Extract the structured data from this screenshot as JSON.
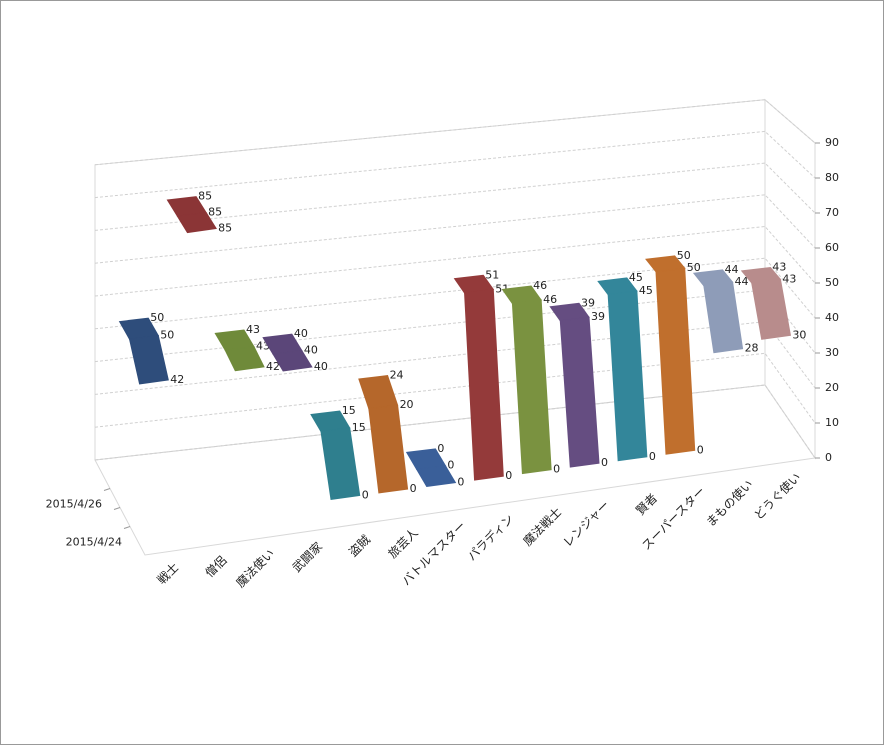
{
  "chart_data": {
    "type": "line",
    "view": "3d",
    "categories": [
      "2015/4/26",
      null,
      "2015/4/24"
    ],
    "ylim": [
      0,
      90
    ],
    "yticks": [
      0,
      10,
      20,
      30,
      40,
      50,
      60,
      70,
      80,
      90
    ],
    "grid": true,
    "series": [
      {
        "name": "戦士",
        "color": "#2e4d7b",
        "values": [
          50,
          50,
          42
        ]
      },
      {
        "name": "僧侶",
        "color": "#8b3536",
        "values": [
          85,
          85,
          85
        ]
      },
      {
        "name": "魔法使い",
        "color": "#6f8a3a",
        "values": [
          43,
          43,
          42
        ]
      },
      {
        "name": "武闘家",
        "color": "#5b4679",
        "values": [
          40,
          40,
          40
        ]
      },
      {
        "name": "盗賊",
        "color": "#2f7f8e",
        "values": [
          15,
          15,
          0
        ]
      },
      {
        "name": "旅芸人",
        "color": "#b5672b",
        "values": [
          24,
          20,
          0
        ]
      },
      {
        "name": "バトルマスター",
        "color": "#3a5f99",
        "values": [
          0,
          0,
          0
        ]
      },
      {
        "name": "パラディン",
        "color": "#943a3a",
        "values": [
          51,
          51,
          0
        ]
      },
      {
        "name": "魔法戦士",
        "color": "#7a9240",
        "values": [
          46,
          46,
          0
        ]
      },
      {
        "name": "レンジャー",
        "color": "#654d81",
        "values": [
          39,
          39,
          0
        ]
      },
      {
        "name": "賢者",
        "color": "#33869a",
        "values": [
          45,
          45,
          0
        ]
      },
      {
        "name": "スーパースター",
        "color": "#c06f2d",
        "values": [
          50,
          50,
          0
        ]
      },
      {
        "name": "まもの使い",
        "color": "#8e9cb8",
        "values": [
          44,
          44,
          28
        ]
      },
      {
        "name": "どうぐ使い",
        "color": "#b88c8c",
        "values": [
          43,
          43,
          30
        ]
      }
    ]
  }
}
